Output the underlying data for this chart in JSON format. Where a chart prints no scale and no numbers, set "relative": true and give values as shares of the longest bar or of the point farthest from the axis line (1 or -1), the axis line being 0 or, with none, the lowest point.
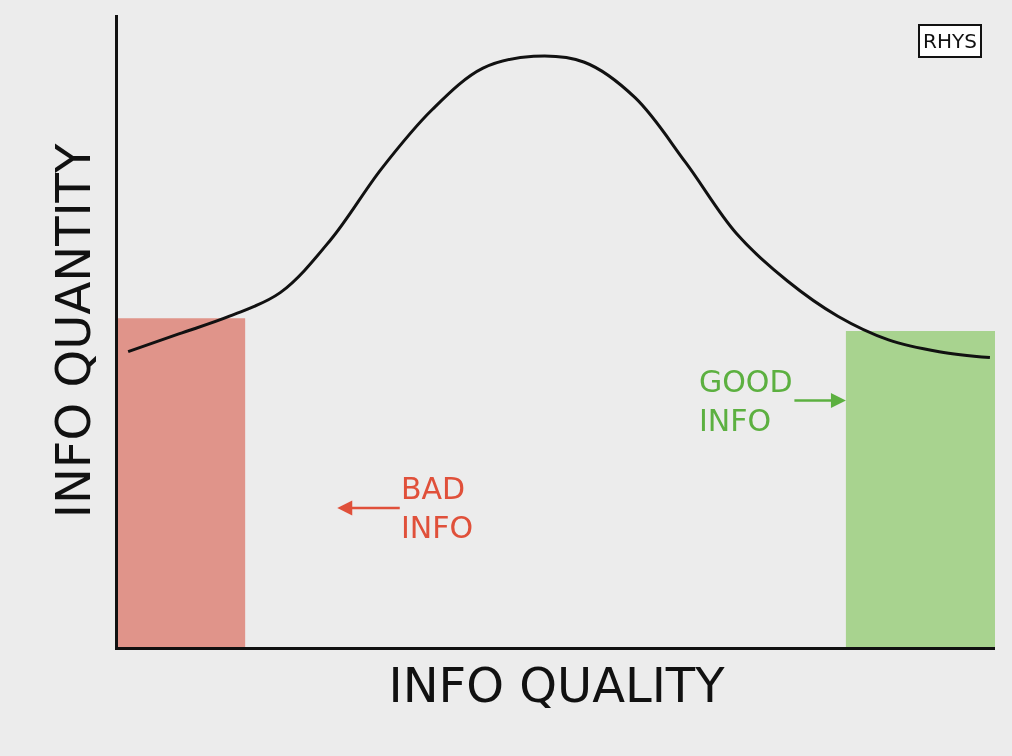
{
  "chart_data": {
    "type": "line",
    "relative": true,
    "xlabel": "INFO QUALITY",
    "ylabel": "INFO QUANTITY",
    "categories": [
      null,
      null,
      null,
      null,
      null,
      null,
      null,
      null,
      null,
      null,
      null,
      null,
      null,
      null,
      null,
      null,
      null,
      null
    ],
    "series": [
      {
        "color": "#111111",
        "values": [
          0.5,
          0.53,
          0.56,
          0.6,
          0.69,
          0.81,
          0.91,
          0.98,
          1.0,
          0.99,
          0.93,
          0.82,
          0.7,
          0.62,
          0.56,
          0.52,
          0.5,
          0.49
        ]
      }
    ],
    "annotations": [
      "RHYS",
      "BAD\nINFO",
      "GOOD\nINFO"
    ],
    "legend": false,
    "grid": false,
    "marker": "none",
    "line_style": "solid",
    "tick_labels": false
  }
}
